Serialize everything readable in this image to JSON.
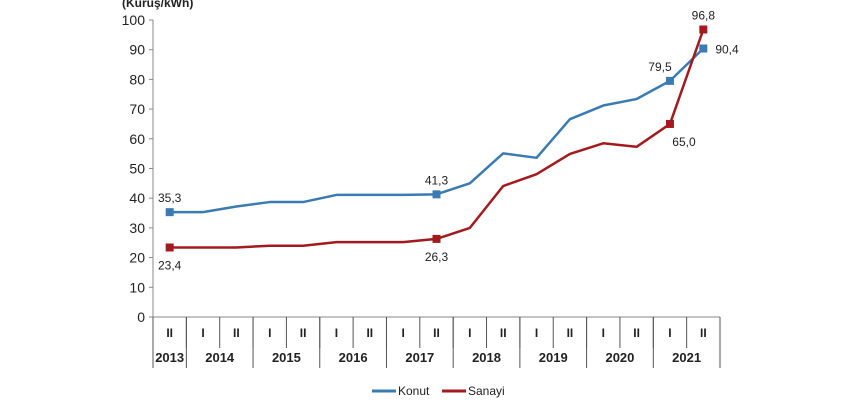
{
  "chart_data": {
    "type": "line",
    "ylabel": "(Kuruş/kWh)",
    "ylim": [
      0,
      100
    ],
    "yticks": [
      0,
      10,
      20,
      30,
      40,
      50,
      60,
      70,
      80,
      90,
      100
    ],
    "grid": false,
    "legend_position": "bottom",
    "semesters": [
      "II",
      "I",
      "II",
      "I",
      "II",
      "I",
      "II",
      "I",
      "II",
      "I",
      "II",
      "I",
      "II",
      "I",
      "II",
      "I",
      "II"
    ],
    "years": [
      {
        "label": "2013",
        "span": 1
      },
      {
        "label": "2014",
        "span": 2
      },
      {
        "label": "2015",
        "span": 2
      },
      {
        "label": "2016",
        "span": 2
      },
      {
        "label": "2017",
        "span": 2
      },
      {
        "label": "2018",
        "span": 2
      },
      {
        "label": "2019",
        "span": 2
      },
      {
        "label": "2020",
        "span": 2
      },
      {
        "label": "2021",
        "span": 2
      }
    ],
    "series": [
      {
        "name": "Konut",
        "color": "#3b7bb3",
        "values": [
          35.3,
          35.3,
          37.2,
          38.7,
          38.7,
          41.1,
          41.1,
          41.1,
          41.3,
          45.0,
          55.1,
          53.6,
          66.6,
          71.2,
          73.4,
          79.5,
          90.4
        ],
        "labels": [
          {
            "index": 0,
            "text": "35,3",
            "pos": "above"
          },
          {
            "index": 8,
            "text": "41,3",
            "pos": "above"
          },
          {
            "index": 15,
            "text": "79,5",
            "pos": "above"
          },
          {
            "index": 16,
            "text": "90,4",
            "pos": "right"
          }
        ]
      },
      {
        "name": "Sanayi",
        "color": "#a31a1e",
        "values": [
          23.4,
          23.4,
          23.4,
          24.0,
          24.0,
          25.2,
          25.2,
          25.2,
          26.3,
          30.0,
          44.1,
          48.1,
          54.9,
          58.5,
          57.3,
          65.0,
          96.8
        ],
        "labels": [
          {
            "index": 0,
            "text": "23,4",
            "pos": "below"
          },
          {
            "index": 8,
            "text": "26,3",
            "pos": "below"
          },
          {
            "index": 15,
            "text": "65,0",
            "pos": "below"
          },
          {
            "index": 16,
            "text": "96,8",
            "pos": "above"
          }
        ]
      }
    ]
  }
}
